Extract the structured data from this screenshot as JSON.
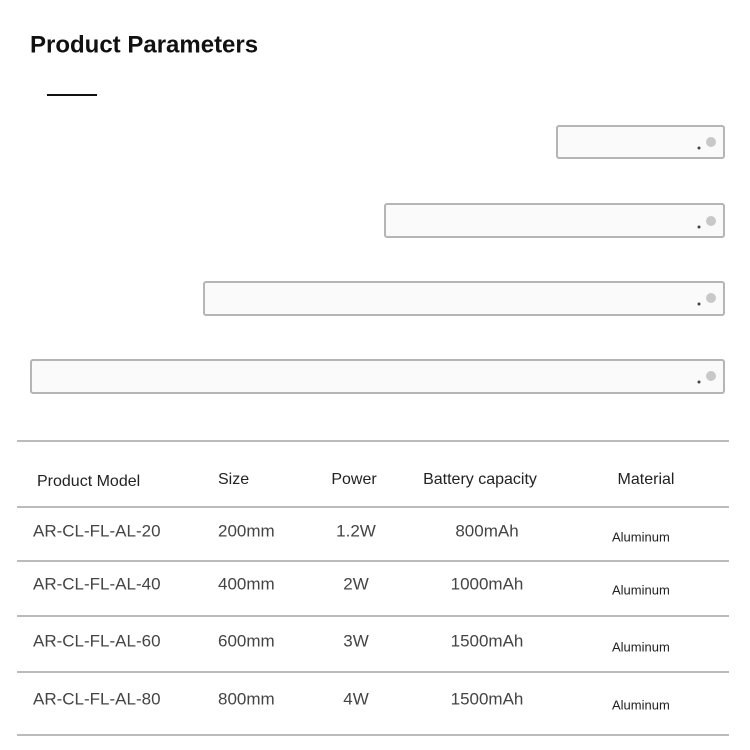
{
  "header": {
    "title": "Product Parameters"
  },
  "table": {
    "columns": [
      "Product Model",
      "Size",
      "Power",
      "Battery capacity",
      "Material"
    ],
    "rows": [
      [
        "AR-CL-FL-AL-20",
        "200mm",
        "1.2W",
        "800mAh",
        "Aluminum"
      ],
      [
        "AR-CL-FL-AL-40",
        "400mm",
        "2W",
        "1000mAh",
        "Aluminum"
      ],
      [
        "AR-CL-FL-AL-60",
        "600mm",
        "3W",
        "1500mAh",
        "Aluminum"
      ],
      [
        "AR-CL-FL-AL-80",
        "800mm",
        "4W",
        "1500mAh",
        "Aluminum"
      ]
    ]
  }
}
